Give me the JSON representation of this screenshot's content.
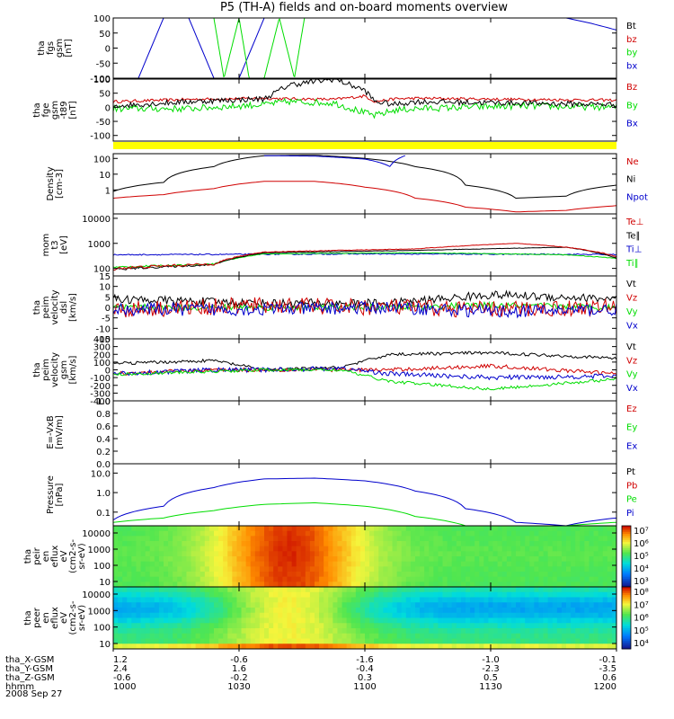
{
  "title": "P5 (TH-A) fields and on-board moments overview",
  "date": "2008 Sep 27",
  "colors": {
    "black": "#000000",
    "red": "#d00000",
    "green": "#00dd00",
    "blue": "#0000cc",
    "yellow": "#ffff00"
  },
  "chart_data": {
    "type": "line",
    "x_range": [
      "10:00",
      "12:00"
    ],
    "x_ticks": [
      "1000",
      "1030",
      "1100",
      "1130",
      "1200"
    ],
    "ephemeris": [
      {
        "label": "tha_X-GSM",
        "values": [
          "1.2",
          "-0.6",
          "-1.6",
          "-1.0",
          "-0.1"
        ]
      },
      {
        "label": "tha_Y-GSM",
        "values": [
          "2.4",
          "1.6",
          "-0.4",
          "-2.3",
          "-3.5"
        ]
      },
      {
        "label": "tha_Z-GSM",
        "values": [
          "-0.6",
          "-0.2",
          "0.3",
          "0.5",
          "0.6"
        ]
      },
      {
        "label": "hhmm",
        "values": [
          "1000",
          "1030",
          "1100",
          "1130",
          "1200"
        ]
      }
    ],
    "panels": [
      {
        "ylabel": [
          "tha",
          "fgs",
          "gsm",
          "[nT]"
        ],
        "ticks": [
          "100",
          "50",
          "0",
          "-50",
          "-100"
        ],
        "ylim": [
          -100,
          100
        ],
        "legend": [
          {
            "name": "Bt",
            "color": "black"
          },
          {
            "name": "bz",
            "color": "red"
          },
          {
            "name": "by",
            "color": "green"
          },
          {
            "name": "bx",
            "color": "blue"
          }
        ],
        "series": [
          {
            "color": "blue",
            "t": [
              0,
              0.05,
              0.1,
              0.15,
              0.2,
              0.25,
              0.3,
              0.35,
              0.4,
              0.45,
              0.5,
              0.55,
              0.6,
              0.65,
              0.7,
              0.75,
              0.8,
              0.85,
              0.9,
              0.95,
              1
            ],
            "v": [
              -100,
              -100,
              100,
              100,
              -100,
              -100,
              100,
              100,
              100,
              100,
              100,
              100,
              100,
              100,
              100,
              100,
              100,
              100,
              100,
              82,
              60
            ],
            "noise": 0
          },
          {
            "color": "green",
            "t": [
              0.2,
              0.22,
              0.25,
              0.27,
              0.3,
              0.33,
              0.36,
              0.38
            ],
            "v": [
              100,
              -100,
              100,
              -100,
              -100,
              100,
              -100,
              100
            ],
            "noise": 0
          }
        ]
      },
      {
        "ylabel": [
          "tha",
          "fge",
          "gsm",
          "-t89",
          "[nT]"
        ],
        "ticks": [
          "100",
          "50",
          "0",
          "-50",
          "-100"
        ],
        "ylim": [
          -120,
          100
        ],
        "legend": [
          {
            "name": "Bz",
            "color": "red"
          },
          {
            "name": "By",
            "color": "green"
          },
          {
            "name": "Bx",
            "color": "blue"
          }
        ],
        "series": [
          {
            "color": "red",
            "t": [
              0,
              0.15,
              0.3,
              0.35,
              0.44,
              0.5,
              0.52,
              0.56,
              0.6,
              0.8,
              1
            ],
            "v": [
              20,
              28,
              32,
              30,
              28,
              40,
              20,
              30,
              32,
              28,
              25
            ],
            "noise": 5
          },
          {
            "color": "green",
            "t": [
              0,
              0.15,
              0.3,
              0.35,
              0.44,
              0.5,
              0.52,
              0.56,
              0.6,
              0.8,
              1
            ],
            "v": [
              -5,
              -5,
              10,
              20,
              15,
              -20,
              -30,
              -10,
              -5,
              5,
              0
            ],
            "noise": 12
          },
          {
            "color": "black",
            "t": [
              0,
              0.15,
              0.3,
              0.35,
              0.44,
              0.5,
              0.52,
              0.56,
              0.6,
              0.8,
              1
            ],
            "v": [
              5,
              20,
              30,
              80,
              100,
              60,
              20,
              10,
              20,
              15,
              10
            ],
            "noise": 10
          }
        ]
      },
      {
        "ylabel": [
          "Density",
          "[cm-3]"
        ],
        "ticks": [
          "100",
          "10",
          "1"
        ],
        "ylim": [
          0.03,
          200
        ],
        "log": true,
        "legend": [
          {
            "name": "Ne",
            "color": "red"
          },
          {
            "name": "Ni",
            "color": "black"
          },
          {
            "name": "Npot",
            "color": "blue"
          }
        ],
        "series": [
          {
            "color": "black",
            "t": [
              0,
              0.1,
              0.2,
              0.3,
              0.4,
              0.5,
              0.6,
              0.7,
              0.8,
              0.9,
              1
            ],
            "v": [
              0.8,
              3,
              30,
              150,
              160,
              100,
              30,
              2,
              0.3,
              0.4,
              2
            ],
            "noise": 0
          },
          {
            "color": "red",
            "t": [
              0,
              0.1,
              0.2,
              0.3,
              0.4,
              0.5,
              0.6,
              0.7,
              0.8,
              0.9,
              1
            ],
            "v": [
              0.3,
              0.5,
              1.2,
              3.5,
              3.5,
              1.5,
              0.3,
              0.08,
              0.04,
              0.05,
              0.1
            ],
            "noise": 0
          },
          {
            "color": "blue",
            "t": [
              0.3,
              0.4,
              0.5,
              0.55,
              0.58
            ],
            "v": [
              150,
              140,
              90,
              30,
              150
            ],
            "noise": 0
          }
        ]
      },
      {
        "ylabel": [
          "mom",
          "t3",
          "[eV]"
        ],
        "ticks": [
          "10000",
          "1000",
          "100"
        ],
        "ylim": [
          50,
          15000
        ],
        "log": true,
        "legend": [
          {
            "name": "Te⊥",
            "color": "red"
          },
          {
            "name": "Te∥",
            "color": "black"
          },
          {
            "name": "Ti⊥",
            "color": "blue"
          },
          {
            "name": "Ti∥",
            "color": "green"
          }
        ],
        "series": [
          {
            "color": "blue",
            "t": [
              0,
              0.5,
              1
            ],
            "v": [
              350,
              380,
              360
            ],
            "noise": 20
          },
          {
            "color": "green",
            "t": [
              0,
              0.2,
              0.3,
              0.6,
              0.9,
              1
            ],
            "v": [
              110,
              150,
              380,
              420,
              350,
              250
            ],
            "noise": 10
          },
          {
            "color": "black",
            "t": [
              0,
              0.2,
              0.3,
              0.6,
              0.9,
              1
            ],
            "v": [
              90,
              140,
              420,
              520,
              700,
              250
            ],
            "noise": 10
          },
          {
            "color": "red",
            "t": [
              0,
              0.2,
              0.3,
              0.6,
              0.8,
              0.9,
              1
            ],
            "v": [
              100,
              150,
              450,
              600,
              1000,
              700,
              300
            ],
            "noise": 15
          }
        ]
      },
      {
        "ylabel": [
          "tha",
          "peim",
          "velocity",
          "dsl",
          "[km/s]"
        ],
        "ticks": [
          "15",
          "10",
          "5",
          "0",
          "-5",
          "-10",
          "-15"
        ],
        "ylim": [
          -15,
          15
        ],
        "legend": [
          {
            "name": "Vt",
            "color": "black"
          },
          {
            "name": "Vz",
            "color": "red"
          },
          {
            "name": "Vy",
            "color": "green"
          },
          {
            "name": "Vx",
            "color": "blue"
          }
        ],
        "series": [
          {
            "color": "black",
            "t": [
              0,
              0.3,
              0.55,
              0.75,
              1
            ],
            "v": [
              4,
              2,
              2,
              6,
              4
            ],
            "noise": 2
          },
          {
            "color": "green",
            "t": [
              0,
              0.3,
              0.55,
              0.75,
              1
            ],
            "v": [
              0,
              0,
              0,
              1,
              0
            ],
            "noise": 1.5
          },
          {
            "color": "red",
            "t": [
              0,
              0.3,
              0.55,
              0.75,
              1
            ],
            "v": [
              -1,
              1,
              0,
              -1,
              0
            ],
            "noise": 4
          },
          {
            "color": "blue",
            "t": [
              0,
              0.3,
              0.55,
              0.75,
              1
            ],
            "v": [
              -1,
              -1,
              0,
              -2,
              -1
            ],
            "noise": 3
          }
        ]
      },
      {
        "ylabel": [
          "tha",
          "peim",
          "velocity",
          "gsm",
          "[km/s]"
        ],
        "ticks": [
          "400",
          "300",
          "200",
          "100",
          "0",
          "-100",
          "-200",
          "-300",
          "-400"
        ],
        "ylim": [
          -400,
          400
        ],
        "legend": [
          {
            "name": "Vt",
            "color": "black"
          },
          {
            "name": "Vz",
            "color": "red"
          },
          {
            "name": "Vy",
            "color": "green"
          },
          {
            "name": "Vx",
            "color": "blue"
          }
        ],
        "series": [
          {
            "color": "black",
            "t": [
              0,
              0.2,
              0.3,
              0.45,
              0.55,
              0.75,
              1
            ],
            "v": [
              80,
              120,
              0,
              30,
              200,
              220,
              150
            ],
            "noise": 20
          },
          {
            "color": "red",
            "t": [
              0,
              0.2,
              0.3,
              0.45,
              0.55,
              0.75,
              1
            ],
            "v": [
              -50,
              0,
              0,
              0,
              0,
              50,
              -50
            ],
            "noise": 25
          },
          {
            "color": "blue",
            "t": [
              0,
              0.2,
              0.3,
              0.45,
              0.55,
              0.75,
              1
            ],
            "v": [
              -50,
              0,
              0,
              20,
              -50,
              -100,
              -80
            ],
            "noise": 30
          },
          {
            "color": "green",
            "t": [
              0,
              0.2,
              0.3,
              0.45,
              0.55,
              0.75,
              1
            ],
            "v": [
              -60,
              -20,
              0,
              0,
              -150,
              -250,
              -120
            ],
            "noise": 20
          }
        ]
      },
      {
        "ylabel": [
          "E=-VxB",
          "[mV/m]"
        ],
        "ticks": [
          "1.0",
          "0.8",
          "0.6",
          "0.4",
          "0.2",
          "0.0"
        ],
        "ylim": [
          0,
          1
        ],
        "legend": [
          {
            "name": "Ez",
            "color": "red"
          },
          {
            "name": "Ey",
            "color": "green"
          },
          {
            "name": "Ex",
            "color": "blue"
          }
        ],
        "series": []
      },
      {
        "ylabel": [
          "Pressure",
          "[nPa]"
        ],
        "ticks": [
          "10.0",
          "1.0",
          "0.1"
        ],
        "ylim": [
          0.02,
          30
        ],
        "log": true,
        "legend": [
          {
            "name": "Pt",
            "color": "black"
          },
          {
            "name": "Pb",
            "color": "red"
          },
          {
            "name": "Pe",
            "color": "green"
          },
          {
            "name": "Pi",
            "color": "blue"
          }
        ],
        "series": [
          {
            "color": "blue",
            "t": [
              0,
              0.1,
              0.2,
              0.3,
              0.4,
              0.5,
              0.6,
              0.7,
              0.8,
              0.9,
              1
            ],
            "v": [
              0.04,
              0.2,
              1.8,
              5,
              5.5,
              4,
              1.2,
              0.15,
              0.03,
              0.02,
              0.05
            ],
            "noise": 0
          },
          {
            "color": "green",
            "t": [
              0,
              0.1,
              0.2,
              0.3,
              0.4,
              0.5,
              0.6,
              0.7,
              0.8,
              0.9,
              1
            ],
            "v": [
              0.03,
              0.05,
              0.12,
              0.25,
              0.3,
              0.2,
              0.06,
              0.02,
              0.02,
              0.02,
              0.03
            ],
            "noise": 0
          }
        ]
      },
      {
        "ylabel": [
          "tha",
          "peir",
          "en",
          "eflux",
          "eV",
          "(cm2-s-",
          "sr-eV)"
        ],
        "ticks": [
          "10000",
          "1000",
          "100",
          "10"
        ],
        "colorbar": [
          "10⁷",
          "10⁶",
          "10⁵",
          "10⁴",
          "10³"
        ],
        "spectrogram": "ion"
      },
      {
        "ylabel": [
          "tha",
          "peer",
          "en",
          "eflux",
          "eV",
          "(cm2-s-",
          "sr-eV)"
        ],
        "ticks": [
          "10000",
          "1000",
          "100",
          "10"
        ],
        "colorbar": [
          "10⁸",
          "10⁷",
          "10⁶",
          "10⁵",
          "10⁴"
        ],
        "spectrogram": "electron"
      }
    ]
  }
}
